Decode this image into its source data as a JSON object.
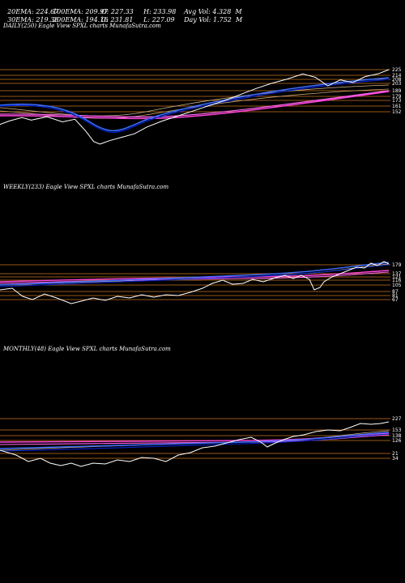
{
  "header": {
    "row1": [
      "20EMA: 224.67",
      "100EMA: 209.97",
      "O: 227.33",
      "H: 233.98",
      "Avg Vol: 4.328  M"
    ],
    "row2": [
      "30EMA: 219.36",
      "200EMA: 194.16",
      "C: 231.81",
      "L: 227.09",
      "Day Vol: 1.752  M"
    ]
  },
  "colors": {
    "price": "#ffffff",
    "ema_blue": "#3a6dff",
    "ema_pink": "#ff44dd",
    "ema_tan": "#d2b48c",
    "hline": "#cc7722"
  },
  "chart_data": [
    {
      "type": "line",
      "title": "DAILY(250) Eagle  View  SPXL  charts MunafaSutra.com",
      "ticks": [
        "225",
        "214",
        "208",
        "203",
        "189",
        "179",
        "173",
        "161",
        "152"
      ],
      "price": [
        {
          "i": 0,
          "v": 168
        },
        {
          "i": 6,
          "v": 172
        },
        {
          "i": 14,
          "v": 176
        },
        {
          "i": 20,
          "v": 173
        },
        {
          "i": 30,
          "v": 177
        },
        {
          "i": 40,
          "v": 171
        },
        {
          "i": 48,
          "v": 174
        },
        {
          "i": 55,
          "v": 160
        },
        {
          "i": 60,
          "v": 148
        },
        {
          "i": 64,
          "v": 145
        },
        {
          "i": 70,
          "v": 149
        },
        {
          "i": 78,
          "v": 153
        },
        {
          "i": 86,
          "v": 157
        },
        {
          "i": 94,
          "v": 165
        },
        {
          "i": 104,
          "v": 172
        },
        {
          "i": 114,
          "v": 178
        },
        {
          "i": 124,
          "v": 184
        },
        {
          "i": 134,
          "v": 190
        },
        {
          "i": 144,
          "v": 196
        },
        {
          "i": 154,
          "v": 203
        },
        {
          "i": 164,
          "v": 210
        },
        {
          "i": 174,
          "v": 216
        },
        {
          "i": 184,
          "v": 221
        },
        {
          "i": 194,
          "v": 227
        },
        {
          "i": 202,
          "v": 223
        },
        {
          "i": 210,
          "v": 213
        },
        {
          "i": 218,
          "v": 220
        },
        {
          "i": 226,
          "v": 217
        },
        {
          "i": 234,
          "v": 224
        },
        {
          "i": 242,
          "v": 227
        },
        {
          "i": 249,
          "v": 232
        }
      ]
    },
    {
      "type": "line",
      "title": "WEEKLY(233) Eagle  View  SPXL  charts MunafaSutra.com",
      "ticks": [
        "179",
        "137",
        "121",
        "116",
        "105",
        "87",
        "81",
        "67"
      ]
    },
    {
      "type": "line",
      "title": "MONTHLY(48) Eagle  View  SPXL  charts MunafaSutra.com",
      "ticks": [
        "227",
        "153",
        "138",
        "126",
        "21",
        "34"
      ]
    }
  ]
}
